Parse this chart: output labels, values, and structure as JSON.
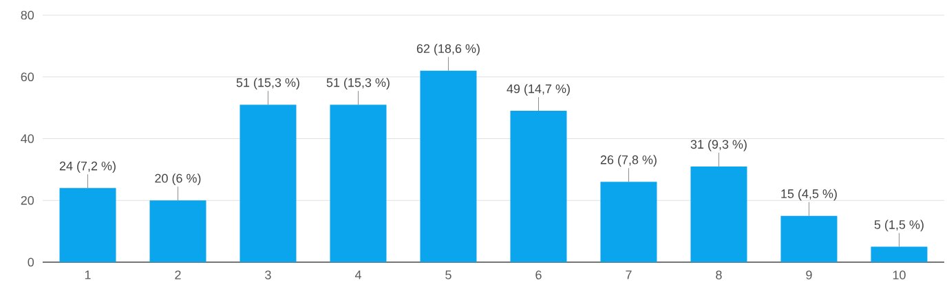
{
  "chart_data": {
    "type": "bar",
    "categories": [
      "1",
      "2",
      "3",
      "4",
      "5",
      "6",
      "7",
      "8",
      "9",
      "10"
    ],
    "values": [
      24,
      20,
      51,
      51,
      62,
      49,
      26,
      31,
      15,
      5
    ],
    "value_labels": [
      "24 (7,2 %)",
      "20 (6 %)",
      "51 (15,3 %)",
      "51 (15,3 %)",
      "62 (18,6 %)",
      "49 (14,7 %)",
      "26 (7,8 %)",
      "31 (9,3 %)",
      "15 (4,5 %)",
      "5 (1,5 %)"
    ],
    "color": "#0aa5ec",
    "ylim": [
      0,
      80
    ],
    "yticks": [
      0,
      20,
      40,
      60,
      80
    ],
    "grid": "y"
  }
}
